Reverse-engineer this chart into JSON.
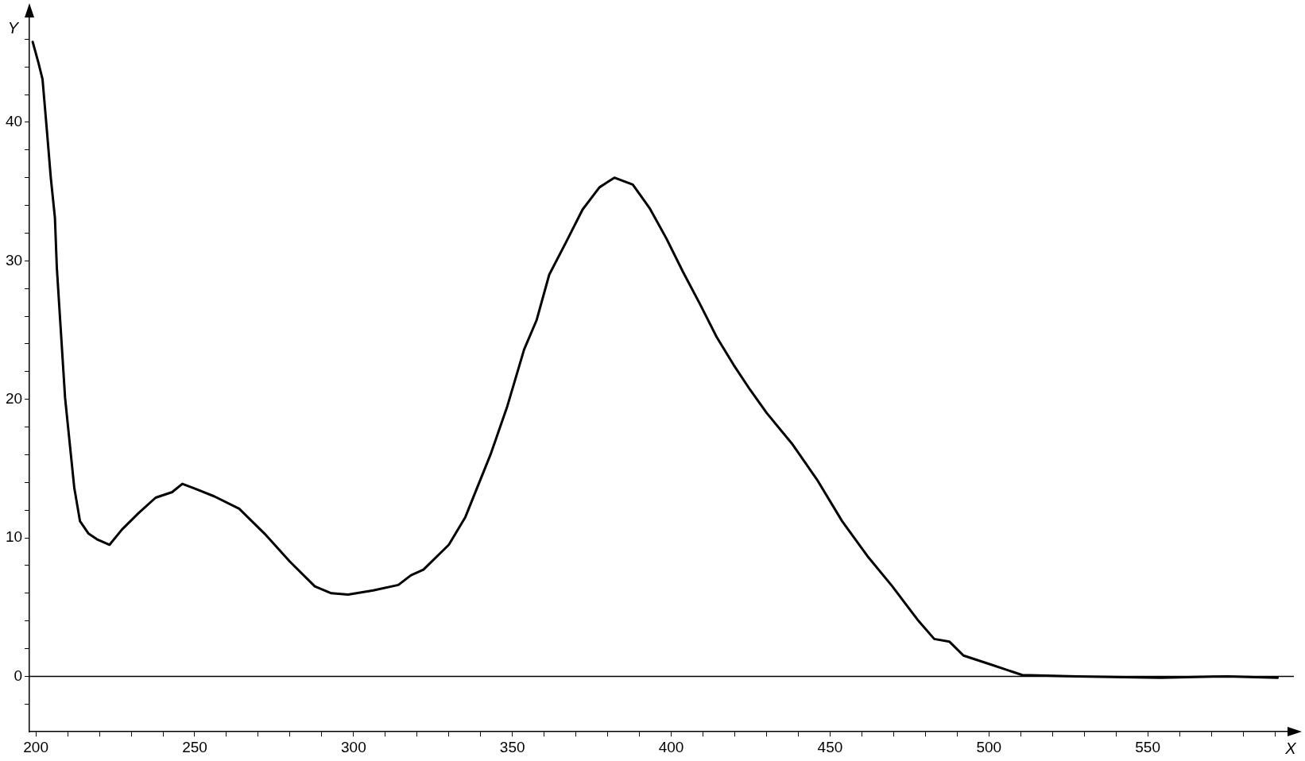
{
  "chart_data": {
    "type": "line",
    "xlabel": "X",
    "ylabel": "Y",
    "xlim": [
      198,
      596
    ],
    "ylim": [
      -4,
      48
    ],
    "xticks": [
      200,
      {
        "value": 210,
        "label": null
      },
      {
        "value": 220,
        "label": null
      },
      {
        "value": 230,
        "label": null
      },
      {
        "value": 240,
        "label": null
      },
      250,
      {
        "value": 260,
        "label": null
      },
      {
        "value": 270,
        "label": null
      },
      {
        "value": 280,
        "label": null
      },
      {
        "value": 290,
        "label": null
      },
      300,
      {
        "value": 310,
        "label": null
      },
      {
        "value": 320,
        "label": null
      },
      {
        "value": 330,
        "label": null
      },
      {
        "value": 340,
        "label": null
      },
      350,
      {
        "value": 360,
        "label": null
      },
      {
        "value": 370,
        "label": null
      },
      {
        "value": 380,
        "label": null
      },
      {
        "value": 390,
        "label": null
      },
      400,
      {
        "value": 410,
        "label": null
      },
      {
        "value": 420,
        "label": null
      },
      {
        "value": 430,
        "label": null
      },
      {
        "value": 440,
        "label": null
      },
      450,
      {
        "value": 460,
        "label": null
      },
      {
        "value": 470,
        "label": null
      },
      {
        "value": 480,
        "label": null
      },
      {
        "value": 490,
        "label": null
      },
      500,
      {
        "value": 510,
        "label": null
      },
      {
        "value": 520,
        "label": null
      },
      {
        "value": 530,
        "label": null
      },
      {
        "value": 540,
        "label": null
      },
      550,
      {
        "value": 560,
        "label": null
      },
      {
        "value": 570,
        "label": null
      },
      {
        "value": 580,
        "label": null
      },
      {
        "value": 590,
        "label": null
      }
    ],
    "yticks": [
      {
        "value": -2,
        "label": null
      },
      0,
      {
        "value": 2,
        "label": null
      },
      {
        "value": 4,
        "label": null
      },
      {
        "value": 6,
        "label": null
      },
      {
        "value": 8,
        "label": null
      },
      10,
      {
        "value": 12,
        "label": null
      },
      {
        "value": 14,
        "label": null
      },
      {
        "value": 16,
        "label": null
      },
      {
        "value": 18,
        "label": null
      },
      20,
      {
        "value": 22,
        "label": null
      },
      {
        "value": 24,
        "label": null
      },
      {
        "value": 26,
        "label": null
      },
      {
        "value": 28,
        "label": null
      },
      30,
      {
        "value": 32,
        "label": null
      },
      {
        "value": 34,
        "label": null
      },
      {
        "value": 36,
        "label": null
      },
      {
        "value": 38,
        "label": null
      },
      40,
      {
        "value": 42,
        "label": null
      },
      {
        "value": 44,
        "label": null
      },
      {
        "value": 46,
        "label": null
      }
    ],
    "grid": false,
    "legend": false,
    "marker": "none",
    "line_style": "solid",
    "ref_lines": [
      {
        "axis": "y",
        "value": 0,
        "color": "#000000"
      }
    ],
    "series": [
      {
        "color": "#000000",
        "x": [
          199,
          200.8,
          202.1,
          203.4,
          204.7,
          206,
          206.6,
          207.9,
          209.2,
          210.8,
          212.1,
          213.9,
          216.6,
          219.2,
          223.2,
          227.1,
          232.4,
          237.7,
          242.9,
          246.1,
          249.6,
          256.1,
          264,
          272,
          279.9,
          287.8,
          293,
          298.3,
          306.2,
          314.1,
          318.1,
          322,
          330,
          335.2,
          343.1,
          348.4,
          353.7,
          357.6,
          361.6,
          366.8,
          372.1,
          377.4,
          382.1,
          387.9,
          393.2,
          398.5,
          403.7,
          409,
          414.3,
          419.6,
          424.8,
          430.1,
          438,
          445.9,
          453.8,
          461.7,
          469.6,
          477.5,
          482.8,
          487.6,
          492,
          500,
          510.5,
          527.6,
          554,
          575,
          590.9
        ],
        "values": [
          45.8,
          44.3,
          43.1,
          39.6,
          36,
          33.1,
          29.5,
          24.8,
          20.1,
          16.5,
          13.6,
          11.2,
          10.3,
          9.9,
          9.5,
          10.6,
          11.8,
          12.9,
          13.3,
          13.9,
          13.6,
          13,
          12.1,
          10.3,
          8.3,
          6.5,
          6,
          5.9,
          6.2,
          6.6,
          7.3,
          7.7,
          9.5,
          11.5,
          16,
          19.5,
          23.6,
          25.7,
          29,
          31.3,
          33.7,
          35.3,
          36,
          35.5,
          33.8,
          31.6,
          29.2,
          26.9,
          24.5,
          22.5,
          20.7,
          19,
          16.8,
          14.2,
          11.2,
          8.7,
          6.5,
          4.1,
          2.7,
          2.5,
          1.5,
          0.9,
          0.1,
          0,
          -0.1,
          0,
          -0.1
        ]
      }
    ]
  }
}
